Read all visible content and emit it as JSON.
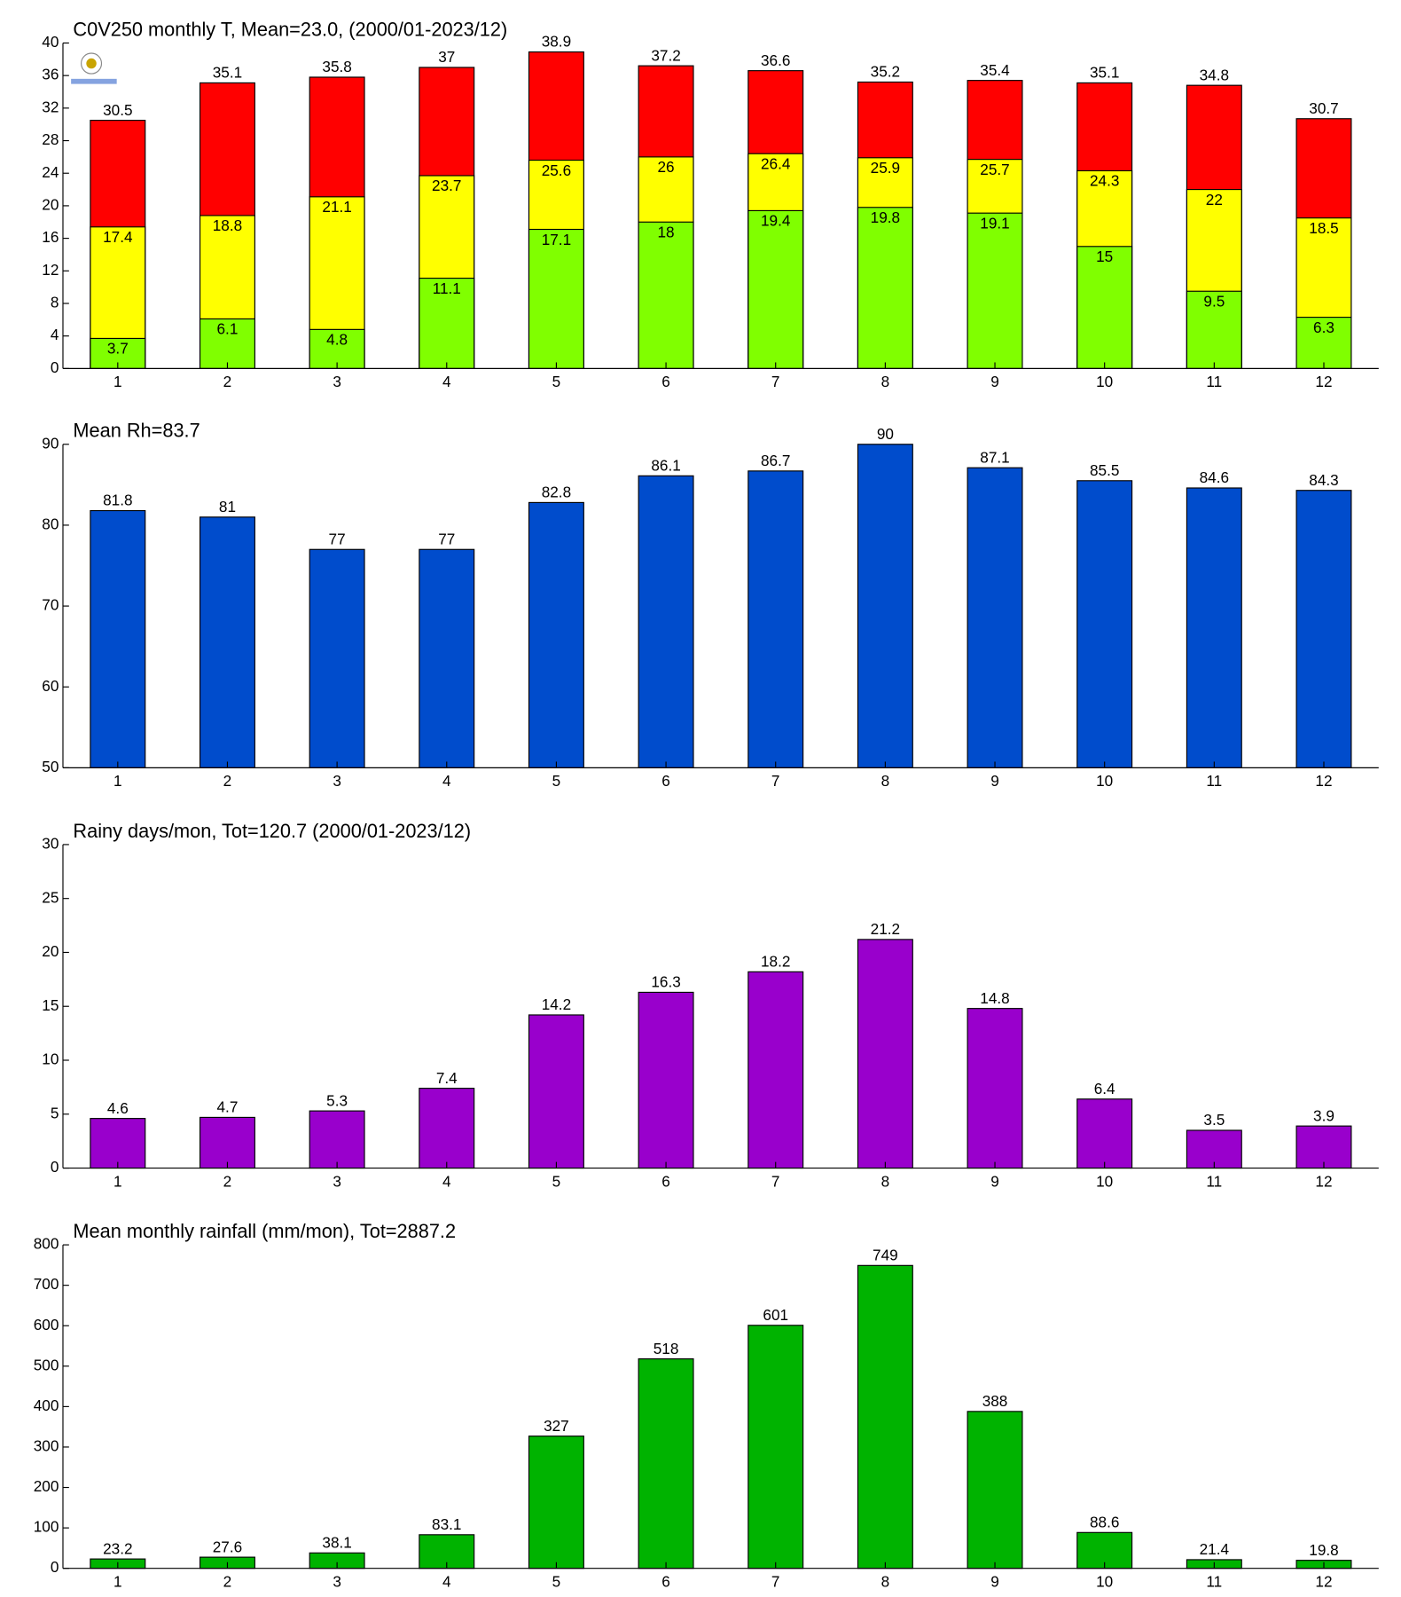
{
  "chart_data": [
    {
      "type": "bar",
      "barmode": "overlay",
      "title": "C0V250 monthly T, Mean=23.0, (2000/01-2023/12)",
      "categories": [
        "1",
        "2",
        "3",
        "4",
        "5",
        "6",
        "7",
        "8",
        "9",
        "10",
        "11",
        "12"
      ],
      "series": [
        {
          "color": "#ff0000",
          "values": [
            30.5,
            35.1,
            35.8,
            37,
            38.9,
            37.2,
            36.6,
            35.2,
            35.4,
            35.1,
            34.8,
            30.7
          ]
        },
        {
          "color": "#ffff00",
          "values": [
            17.4,
            18.8,
            21.1,
            23.7,
            25.6,
            26,
            26.4,
            25.9,
            25.7,
            24.3,
            22,
            18.5
          ]
        },
        {
          "color": "#80ff00",
          "values": [
            3.7,
            6.1,
            4.8,
            11.1,
            17.1,
            18,
            19.4,
            19.8,
            19.1,
            15,
            9.5,
            6.3
          ]
        }
      ],
      "ylim": [
        0,
        40
      ],
      "yticks": [
        0,
        4,
        8,
        12,
        16,
        20,
        24,
        28,
        32,
        36,
        40
      ]
    },
    {
      "type": "bar",
      "title": "Mean Rh=83.7",
      "categories": [
        "1",
        "2",
        "3",
        "4",
        "5",
        "6",
        "7",
        "8",
        "9",
        "10",
        "11",
        "12"
      ],
      "series": [
        {
          "color": "#004ccc",
          "values": [
            81.8,
            81,
            77,
            77,
            82.8,
            86.1,
            86.7,
            90,
            87.1,
            85.5,
            84.6,
            84.3
          ]
        }
      ],
      "ylim": [
        50,
        90
      ],
      "yticks": [
        50,
        60,
        70,
        80,
        90
      ]
    },
    {
      "type": "bar",
      "title": "Rainy days/mon, Tot=120.7 (2000/01-2023/12)",
      "categories": [
        "1",
        "2",
        "3",
        "4",
        "5",
        "6",
        "7",
        "8",
        "9",
        "10",
        "11",
        "12"
      ],
      "series": [
        {
          "color": "#9900cc",
          "values": [
            4.6,
            4.7,
            5.3,
            7.4,
            14.2,
            16.3,
            18.2,
            21.2,
            14.8,
            6.4,
            3.5,
            3.9
          ]
        }
      ],
      "ylim": [
        0,
        30
      ],
      "yticks": [
        0,
        5,
        10,
        15,
        20,
        25,
        30
      ]
    },
    {
      "type": "bar",
      "title": "Mean monthly rainfall (mm/mon), Tot=2887.2",
      "categories": [
        "1",
        "2",
        "3",
        "4",
        "5",
        "6",
        "7",
        "8",
        "9",
        "10",
        "11",
        "12"
      ],
      "series": [
        {
          "color": "#00b300",
          "values": [
            23.2,
            27.6,
            38.1,
            83.1,
            327,
            518,
            601,
            749,
            388,
            88.6,
            21.4,
            19.8
          ]
        }
      ],
      "ylim": [
        0,
        800
      ],
      "yticks": [
        0,
        100,
        200,
        300,
        400,
        500,
        600,
        700,
        800
      ]
    }
  ]
}
